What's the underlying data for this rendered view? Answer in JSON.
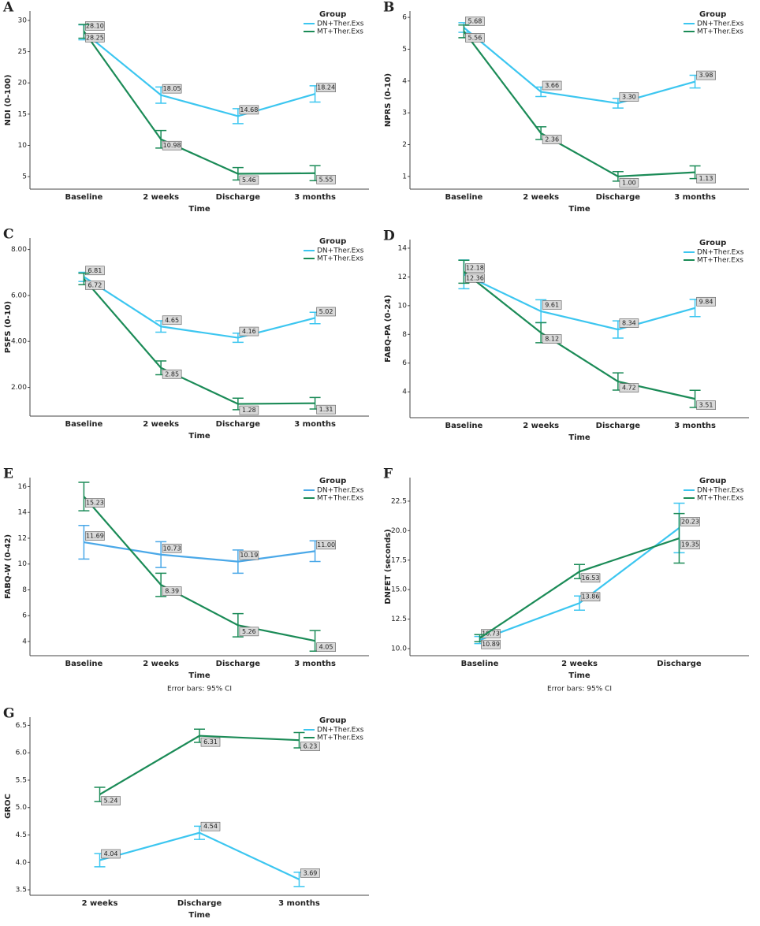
{
  "chart_data": [
    {
      "type": "line",
      "panel": "A",
      "ylabel": "NDI (0-100)",
      "xlabel": "Time",
      "legend_title": "Group",
      "categories": [
        "Baseline",
        "2 weeks",
        "Discharge",
        "3 months"
      ],
      "series": [
        {
          "name": "DN+Ther.Exs",
          "color": "#3cc6f0",
          "values": [
            28.1,
            18.05,
            14.68,
            18.24
          ],
          "value_labels": [
            "28.10",
            "18.05",
            "14.68",
            "18.24"
          ],
          "errors": [
            1.2,
            1.3,
            1.2,
            1.3
          ]
        },
        {
          "name": "MT+Ther.Exs",
          "color": "#1b8b57",
          "values": [
            28.25,
            10.98,
            5.46,
            5.55
          ],
          "value_labels": [
            "28.25",
            "10.98",
            "5.46",
            "5.55"
          ],
          "errors": [
            1.1,
            1.4,
            1.0,
            1.2
          ]
        }
      ],
      "ylim": [
        3,
        31.5
      ],
      "yticks": [
        5,
        10,
        15,
        20,
        25,
        30
      ]
    },
    {
      "type": "line",
      "panel": "B",
      "ylabel": "NPRS (0-10)",
      "xlabel": "Time",
      "legend_title": "Group",
      "categories": [
        "Baseline",
        "2 weeks",
        "Discharge",
        "3 months"
      ],
      "series": [
        {
          "name": "DN+Ther.Exs",
          "color": "#3cc6f0",
          "values": [
            5.68,
            3.66,
            3.3,
            3.98
          ],
          "value_labels": [
            "5.68",
            "3.66",
            "3.30",
            "3.98"
          ],
          "errors": [
            0.15,
            0.15,
            0.15,
            0.2
          ]
        },
        {
          "name": "MT+Ther.Exs",
          "color": "#1b8b57",
          "values": [
            5.56,
            2.36,
            1.0,
            1.13
          ],
          "value_labels": [
            "5.56",
            "2.36",
            "1.00",
            "1.13"
          ],
          "errors": [
            0.2,
            0.2,
            0.15,
            0.2
          ]
        }
      ],
      "ylim": [
        0.6,
        6.2
      ],
      "yticks": [
        1,
        2,
        3,
        4,
        5,
        6
      ]
    },
    {
      "type": "line",
      "panel": "C",
      "ylabel": "PSFS (0-10)",
      "xlabel": "Time",
      "legend_title": "Group",
      "categories": [
        "Baseline",
        "2 weeks",
        "Discharge",
        "3 months"
      ],
      "series": [
        {
          "name": "DN+Ther.Exs",
          "color": "#3cc6f0",
          "values": [
            6.81,
            4.65,
            4.16,
            5.02
          ],
          "value_labels": [
            "6.81",
            "4.65",
            "4.16",
            "5.02"
          ],
          "errors": [
            0.2,
            0.25,
            0.2,
            0.25
          ]
        },
        {
          "name": "MT+Ther.Exs",
          "color": "#1b8b57",
          "values": [
            6.72,
            2.85,
            1.28,
            1.31
          ],
          "value_labels": [
            "6.72",
            "2.85",
            "1.28",
            "1.31"
          ],
          "errors": [
            0.25,
            0.3,
            0.25,
            0.25
          ]
        }
      ],
      "ylim": [
        0.75,
        8.5
      ],
      "yticks": [
        {
          "value": 2,
          "label": "2.00"
        },
        {
          "value": 4,
          "label": "4.00"
        },
        {
          "value": 6,
          "label": "6.00"
        },
        {
          "value": 8,
          "label": "8.00"
        }
      ]
    },
    {
      "type": "line",
      "panel": "D",
      "ylabel": "FABQ-PA (0-24)",
      "xlabel": "Time",
      "legend_title": "Group",
      "categories": [
        "Baseline",
        "2 weeks",
        "Discharge",
        "3 months"
      ],
      "series": [
        {
          "name": "DN+Ther.Exs",
          "color": "#3cc6f0",
          "values": [
            12.18,
            9.61,
            8.34,
            9.84
          ],
          "value_labels": [
            "12.18",
            "9.61",
            "8.34",
            "9.84"
          ],
          "errors": [
            1.0,
            0.8,
            0.6,
            0.6
          ]
        },
        {
          "name": "MT+Ther.Exs",
          "color": "#1b8b57",
          "values": [
            12.36,
            8.12,
            4.72,
            3.51
          ],
          "value_labels": [
            "12.36",
            "8.12",
            "4.72",
            "3.51"
          ],
          "errors": [
            0.8,
            0.7,
            0.6,
            0.6
          ]
        }
      ],
      "ylim": [
        2.2,
        14.6
      ],
      "yticks": [
        4,
        6,
        8,
        10,
        12,
        14
      ]
    },
    {
      "type": "line",
      "panel": "E",
      "ylabel": "FABQ-W (0-42)",
      "xlabel": "Time",
      "legend_title": "Group",
      "note": "Error bars: 95% CI",
      "categories": [
        "Baseline",
        "2 weeks",
        "Discharge",
        "3 months"
      ],
      "series": [
        {
          "name": "DN+Ther.Exs",
          "color": "#4aa8e8",
          "values": [
            11.69,
            10.73,
            10.19,
            11.0
          ],
          "value_labels": [
            "11.69",
            "10.73",
            "10.19",
            "11.00"
          ],
          "errors": [
            1.3,
            1.0,
            0.9,
            0.8
          ]
        },
        {
          "name": "MT+Ther.Exs",
          "color": "#1b8b57",
          "values": [
            15.23,
            8.39,
            5.26,
            4.05
          ],
          "value_labels": [
            "15.23",
            "8.39",
            "5.26",
            "4.05"
          ],
          "errors": [
            1.1,
            0.9,
            0.9,
            0.8
          ]
        }
      ],
      "ylim": [
        2.9,
        16.7
      ],
      "yticks": [
        4,
        6,
        8,
        10,
        12,
        14,
        16
      ]
    },
    {
      "type": "line",
      "panel": "F",
      "ylabel": "DNFET (seconds)",
      "xlabel": "Time",
      "legend_title": "Group",
      "note": "Error bars: 95% CI",
      "categories": [
        "Baseline",
        "2 weeks",
        "Discharge"
      ],
      "series": [
        {
          "name": "DN+Ther.Exs",
          "color": "#3cc6f0",
          "values": [
            10.73,
            13.86,
            20.23
          ],
          "value_labels": [
            "10.73",
            "13.86",
            "20.23"
          ],
          "errors": [
            0.3,
            0.6,
            2.1
          ]
        },
        {
          "name": "MT+Ther.Exs",
          "color": "#1b8b57",
          "values": [
            10.89,
            16.53,
            19.35
          ],
          "value_labels": [
            "10.89",
            "16.53",
            "19.35"
          ],
          "errors": [
            0.3,
            0.6,
            2.1
          ]
        }
      ],
      "ylim": [
        9.4,
        24.5
      ],
      "yticks": [
        {
          "value": 10,
          "label": "10.0"
        },
        12.5,
        {
          "value": 15,
          "label": "15.0"
        },
        17.5,
        {
          "value": 20,
          "label": "20.0"
        },
        22.5
      ]
    },
    {
      "type": "line",
      "panel": "G",
      "ylabel": "GROC",
      "xlabel": "Time",
      "legend_title": "Group",
      "categories": [
        "2 weeks",
        "Discharge",
        "3 months"
      ],
      "series": [
        {
          "name": "DN+Ther.Exs",
          "color": "#3cc6f0",
          "values": [
            4.04,
            4.54,
            3.69
          ],
          "value_labels": [
            "4.04",
            "4.54",
            "3.69"
          ],
          "errors": [
            0.12,
            0.12,
            0.13
          ]
        },
        {
          "name": "MT+Ther.Exs",
          "color": "#1b8b57",
          "values": [
            5.24,
            6.31,
            6.23
          ],
          "value_labels": [
            "5.24",
            "6.31",
            "6.23"
          ],
          "errors": [
            0.13,
            0.12,
            0.14
          ]
        }
      ],
      "ylim": [
        3.4,
        6.65
      ],
      "yticks": [
        3.5,
        {
          "value": 4,
          "label": "4.0"
        },
        4.5,
        {
          "value": 5,
          "label": "5.0"
        },
        5.5,
        {
          "value": 6,
          "label": "6.0"
        },
        6.5
      ]
    }
  ]
}
